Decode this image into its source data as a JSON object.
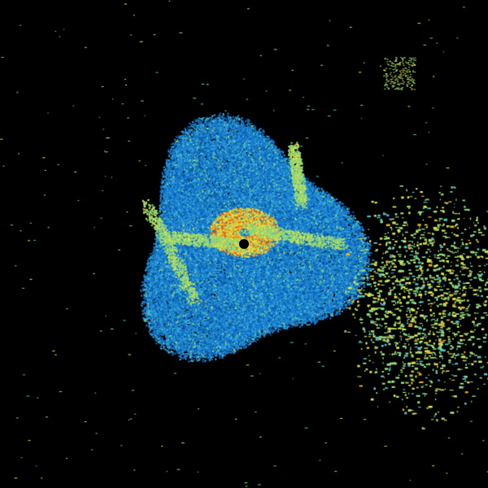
{
  "image": {
    "background": "#000000",
    "palette": [
      "#0a5fb4",
      "#1c82d2",
      "#2fa0dc",
      "#4cc0c8",
      "#8fd67a",
      "#d9e24a",
      "#f0b020",
      "#e85a10",
      "#c01818"
    ]
  }
}
